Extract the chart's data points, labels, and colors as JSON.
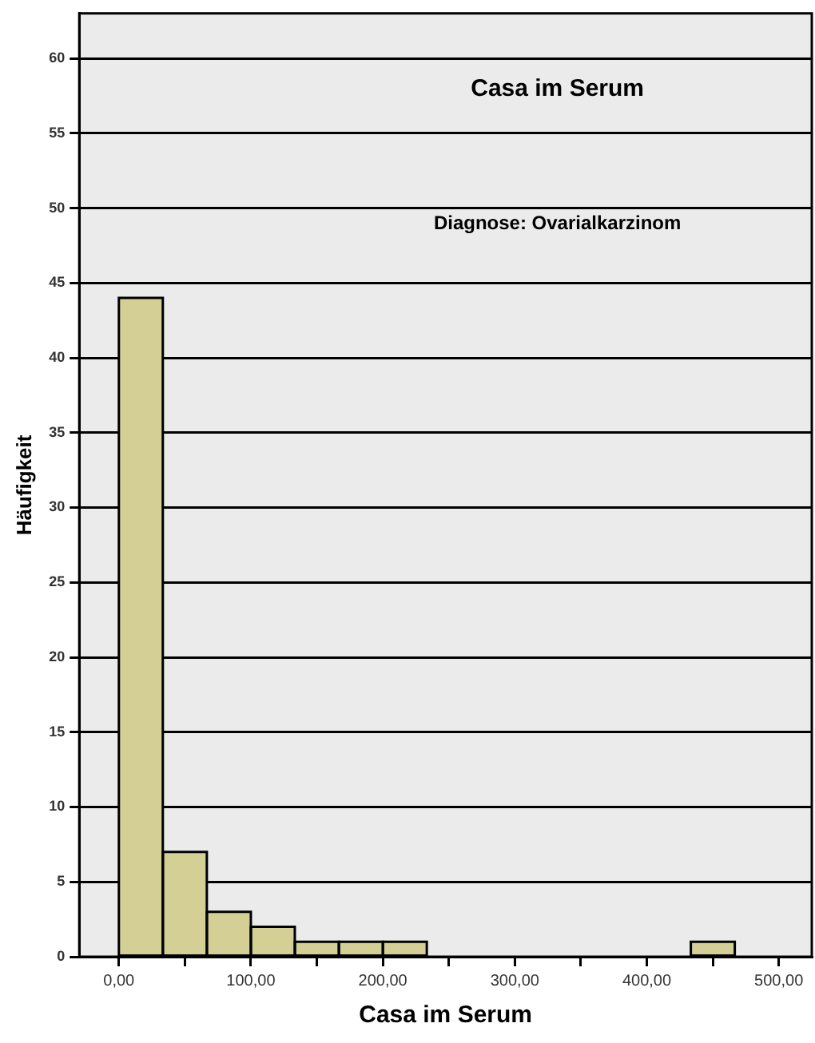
{
  "chart_data": {
    "type": "histogram",
    "title": "Casa im Serum",
    "subtitle": "Diagnose: Ovarialkarzinom",
    "xlabel": "Casa im Serum",
    "ylabel": "Häufigkeit",
    "bins": [
      0,
      33.3,
      66.7,
      100,
      133.3,
      166.7,
      200,
      233.3,
      266.7,
      300,
      333.3,
      366.7,
      400,
      433.3,
      466.7,
      500
    ],
    "values": [
      44,
      7,
      3,
      2,
      1,
      1,
      1,
      0,
      0,
      0,
      0,
      0,
      0,
      1,
      0
    ],
    "color": "#d3cf95",
    "xlim": [
      -30,
      525
    ],
    "xticks": [
      {
        "value": 0,
        "label": "0,00"
      },
      {
        "value": 50,
        "label": null
      },
      {
        "value": 100,
        "label": "100,00"
      },
      {
        "value": 150,
        "label": null
      },
      {
        "value": 200,
        "label": "200,00"
      },
      {
        "value": 250,
        "label": null
      },
      {
        "value": 300,
        "label": "300,00"
      },
      {
        "value": 350,
        "label": null
      },
      {
        "value": 400,
        "label": "400,00"
      },
      {
        "value": 450,
        "label": null
      },
      {
        "value": 500,
        "label": "500,00"
      }
    ],
    "ylim": [
      0,
      63
    ],
    "yticks": [
      0,
      5,
      10,
      15,
      20,
      25,
      30,
      35,
      40,
      45,
      50,
      55,
      60
    ],
    "grid": "y",
    "legend": false
  }
}
